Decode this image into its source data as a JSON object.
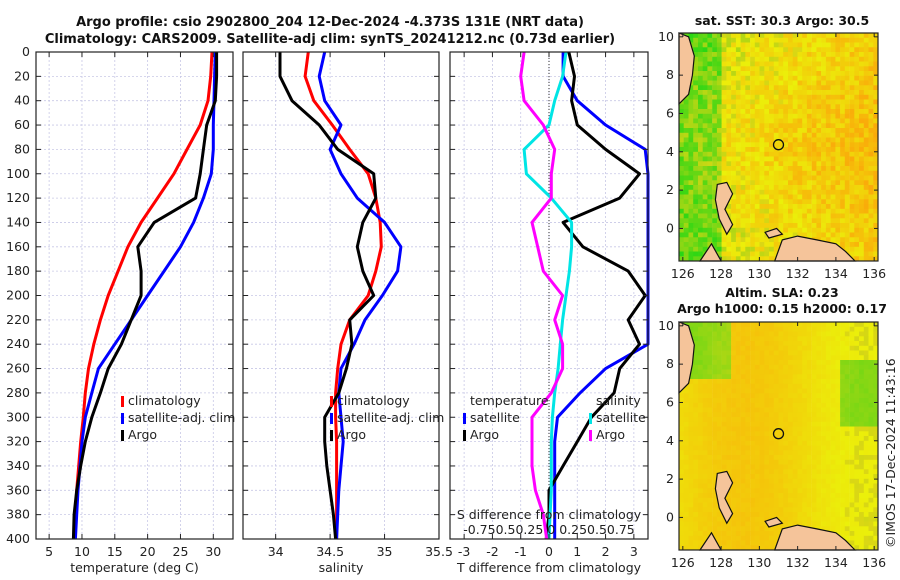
{
  "title": {
    "line1": "Argo profile: csio 2902800_204 12-Dec-2024 -4.373S 131E (NRT data)",
    "line2": "Climatology: CARS2009. Satellite-adj clim: synTS_20241212.nc (0.73d earlier)"
  },
  "colors": {
    "climatology": "#ff0000",
    "satellite": "#0000ff",
    "argo": "#000000",
    "salinity_satellite": "#00e5e5",
    "salinity_argo": "#ff00ff",
    "grid": "#c8c8e6",
    "land": "#f5c49a"
  },
  "chart_data": [
    {
      "type": "line",
      "id": "temperature",
      "xlabel": "temperature (deg C)",
      "ylabel": "",
      "xlim": [
        3,
        33
      ],
      "ylim": [
        400,
        0
      ],
      "xticks": [
        5,
        10,
        15,
        20,
        25,
        30
      ],
      "yticks": [
        0,
        20,
        40,
        60,
        80,
        100,
        120,
        140,
        160,
        180,
        200,
        220,
        240,
        260,
        280,
        300,
        320,
        340,
        360,
        380,
        400
      ],
      "grid": true,
      "legend": {
        "position": "middle-right",
        "entries": [
          "climatology",
          "satellite-adj. clim",
          "Argo"
        ]
      },
      "series": [
        {
          "name": "climatology",
          "color_key": "climatology",
          "depth": [
            0,
            20,
            40,
            60,
            80,
            100,
            120,
            140,
            160,
            180,
            200,
            220,
            240,
            260,
            280,
            300,
            320,
            340,
            360,
            380,
            400
          ],
          "values": [
            29.8,
            29.6,
            29.2,
            28.0,
            26.0,
            24.0,
            21.5,
            19.0,
            17.0,
            15.5,
            14.0,
            12.8,
            11.8,
            11.0,
            10.5,
            10.2,
            9.8,
            9.5,
            9.2,
            9.0,
            8.8
          ]
        },
        {
          "name": "satellite-adj. clim",
          "color_key": "satellite",
          "depth": [
            0,
            20,
            40,
            60,
            80,
            100,
            120,
            140,
            160,
            180,
            200,
            220,
            240,
            260,
            280,
            300,
            320,
            340,
            360,
            380,
            400
          ],
          "values": [
            30.3,
            30.2,
            30.1,
            30.0,
            30.0,
            29.7,
            28.5,
            27.0,
            25.0,
            22.5,
            20.0,
            17.5,
            15.0,
            12.5,
            11.5,
            10.5,
            10.0,
            9.7,
            9.4,
            9.2,
            9.0
          ]
        },
        {
          "name": "Argo",
          "color_key": "argo",
          "depth": [
            0,
            20,
            40,
            60,
            80,
            100,
            120,
            140,
            160,
            180,
            200,
            220,
            240,
            260,
            280,
            300,
            320,
            340,
            360,
            380,
            400
          ],
          "values": [
            30.5,
            30.5,
            30.3,
            29.0,
            28.5,
            28.0,
            27.3,
            21.0,
            18.5,
            19.0,
            19.0,
            17.5,
            16.0,
            14.0,
            12.8,
            11.5,
            10.5,
            9.8,
            9.2,
            8.8,
            8.7
          ]
        }
      ]
    },
    {
      "type": "line",
      "id": "salinity",
      "xlabel": "salinity",
      "xlim": [
        33.7,
        35.5
      ],
      "ylim": [
        400,
        0
      ],
      "xticks": [
        34,
        34.5,
        35,
        35.5
      ],
      "grid": true,
      "legend": {
        "position": "middle",
        "entries": [
          "climatology",
          "satellite-adj. clim",
          "Argo"
        ]
      },
      "series": [
        {
          "name": "climatology",
          "color_key": "climatology",
          "depth": [
            0,
            20,
            40,
            60,
            80,
            100,
            120,
            140,
            160,
            180,
            200,
            220,
            240,
            260,
            280,
            300,
            320,
            340,
            360,
            380,
            400
          ],
          "values": [
            34.3,
            34.27,
            34.35,
            34.52,
            34.68,
            34.85,
            34.92,
            34.96,
            34.97,
            34.92,
            34.85,
            34.68,
            34.6,
            34.57,
            34.55,
            34.55,
            34.56,
            34.56,
            34.56,
            34.56,
            34.56
          ]
        },
        {
          "name": "satellite-adj. clim",
          "color_key": "satellite",
          "depth": [
            0,
            20,
            40,
            60,
            80,
            100,
            120,
            140,
            160,
            180,
            200,
            220,
            240,
            260,
            280,
            300,
            320,
            340,
            360,
            380,
            400
          ],
          "values": [
            34.45,
            34.4,
            34.45,
            34.6,
            34.5,
            34.6,
            34.75,
            35.0,
            35.15,
            35.12,
            34.98,
            34.82,
            34.72,
            34.6,
            34.58,
            34.6,
            34.62,
            34.6,
            34.58,
            34.57,
            34.56
          ]
        },
        {
          "name": "Argo",
          "color_key": "argo",
          "depth": [
            0,
            20,
            40,
            60,
            80,
            100,
            120,
            140,
            160,
            180,
            200,
            220,
            240,
            260,
            280,
            300,
            320,
            340,
            360,
            380,
            400
          ],
          "values": [
            34.04,
            34.04,
            34.15,
            34.4,
            34.57,
            34.9,
            34.92,
            34.8,
            34.75,
            34.8,
            34.9,
            34.68,
            34.7,
            34.65,
            34.58,
            34.45,
            34.45,
            34.47,
            34.5,
            34.53,
            34.55
          ]
        }
      ]
    },
    {
      "type": "line",
      "id": "difference",
      "xlabel": "T difference from climatology",
      "xlim": [
        -3.5,
        3.5
      ],
      "ylim": [
        400,
        0
      ],
      "xticks": [
        -3,
        -2,
        -1,
        0,
        1,
        2,
        3
      ],
      "top_axis_label": "S difference from climatology",
      "top_axis_ticks": [
        "-0.75",
        "0.5",
        "0.25",
        "0",
        "0.25",
        "0.5",
        "0.75"
      ],
      "top_axis_text": "-0.750.50.25 0 0.250.50.75",
      "grid": true,
      "legend": {
        "position": "bottom",
        "groups": [
          {
            "heading": "temperature",
            "entries": [
              "satellite",
              "Argo"
            ]
          },
          {
            "heading": "salinity",
            "entries": [
              "satellite",
              "Argo"
            ]
          }
        ]
      },
      "series": [
        {
          "name": "temperature satellite",
          "color_key": "satellite",
          "depth": [
            0,
            20,
            40,
            60,
            80,
            100,
            120,
            140,
            160,
            180,
            200,
            220,
            240,
            260,
            280,
            300,
            320,
            340,
            360,
            380,
            400
          ],
          "values": [
            0.5,
            0.5,
            1.0,
            2.0,
            3.4,
            5.0,
            7.0,
            8.0,
            8.0,
            7.0,
            6.0,
            5.0,
            4.0,
            2.0,
            1.1,
            0.3,
            0.2,
            0.2,
            0.2,
            0.2,
            0.2
          ]
        },
        {
          "name": "temperature Argo",
          "color_key": "argo",
          "depth": [
            0,
            20,
            40,
            60,
            80,
            100,
            120,
            140,
            160,
            180,
            200,
            220,
            240,
            260,
            280,
            300,
            320,
            340,
            360,
            380,
            400
          ],
          "values": [
            0.7,
            0.9,
            0.8,
            1.0,
            2.0,
            3.2,
            2.5,
            0.5,
            1.2,
            2.8,
            3.4,
            2.8,
            3.2,
            2.5,
            2.3,
            1.5,
            1.0,
            0.5,
            0.0,
            0.0,
            -0.1
          ]
        },
        {
          "name": "salinity satellite",
          "color_key": "salinity_satellite",
          "depth": [
            0,
            20,
            40,
            60,
            80,
            100,
            120,
            140,
            160,
            180,
            200,
            220,
            240,
            260,
            280,
            300,
            320,
            340,
            360,
            380,
            400
          ],
          "values": [
            0.15,
            0.12,
            0.05,
            0.0,
            -0.22,
            -0.2,
            0.02,
            0.2,
            0.2,
            0.18,
            0.15,
            0.12,
            0.1,
            0.08,
            0.05,
            0.03,
            0.02,
            0.02,
            0.02,
            0.01,
            0.0
          ]
        },
        {
          "name": "salinity Argo",
          "color_key": "salinity_argo",
          "depth": [
            0,
            20,
            40,
            60,
            80,
            100,
            120,
            140,
            160,
            180,
            200,
            220,
            240,
            260,
            280,
            300,
            320,
            340,
            360,
            380,
            400
          ],
          "values": [
            -0.22,
            -0.25,
            -0.22,
            -0.05,
            0.05,
            0.02,
            0.02,
            -0.15,
            -0.1,
            -0.05,
            0.12,
            0.05,
            0.12,
            0.12,
            0.02,
            -0.15,
            -0.15,
            -0.15,
            -0.12,
            -0.05,
            -0.02
          ]
        }
      ]
    },
    {
      "type": "heatmap",
      "id": "sst-map",
      "title": "sat. SST: 30.3 Argo: 30.5",
      "xlim": [
        125.8,
        136.2
      ],
      "ylim": [
        -1.7,
        10.2
      ],
      "xticks": [
        126,
        128,
        130,
        132,
        134,
        136
      ],
      "yticks": [
        0,
        2,
        4,
        6,
        8,
        10
      ],
      "marker": {
        "lon": 131.0,
        "lat": 4.37,
        "shape": "circle"
      }
    },
    {
      "type": "heatmap",
      "id": "sla-map",
      "title": "Altim. SLA: 0.23",
      "subtitle": "Argo h1000: 0.15 h2000: 0.17",
      "xlim": [
        125.8,
        136.2
      ],
      "ylim": [
        -1.7,
        10.2
      ],
      "xticks": [
        126,
        128,
        130,
        132,
        134,
        136
      ],
      "yticks": [
        0,
        2,
        4,
        6,
        8,
        10
      ],
      "marker": {
        "lon": 131.0,
        "lat": 4.37,
        "shape": "circle"
      }
    }
  ],
  "legend_labels": {
    "climatology": "climatology",
    "satellite_adj": "satellite-adj. clim",
    "argo": "Argo",
    "temperature": "temperature",
    "salinity": "salinity",
    "satellite": "satellite"
  },
  "footer": {
    "stamp": "©IMOS 17-Dec-2024 11:43:16"
  }
}
